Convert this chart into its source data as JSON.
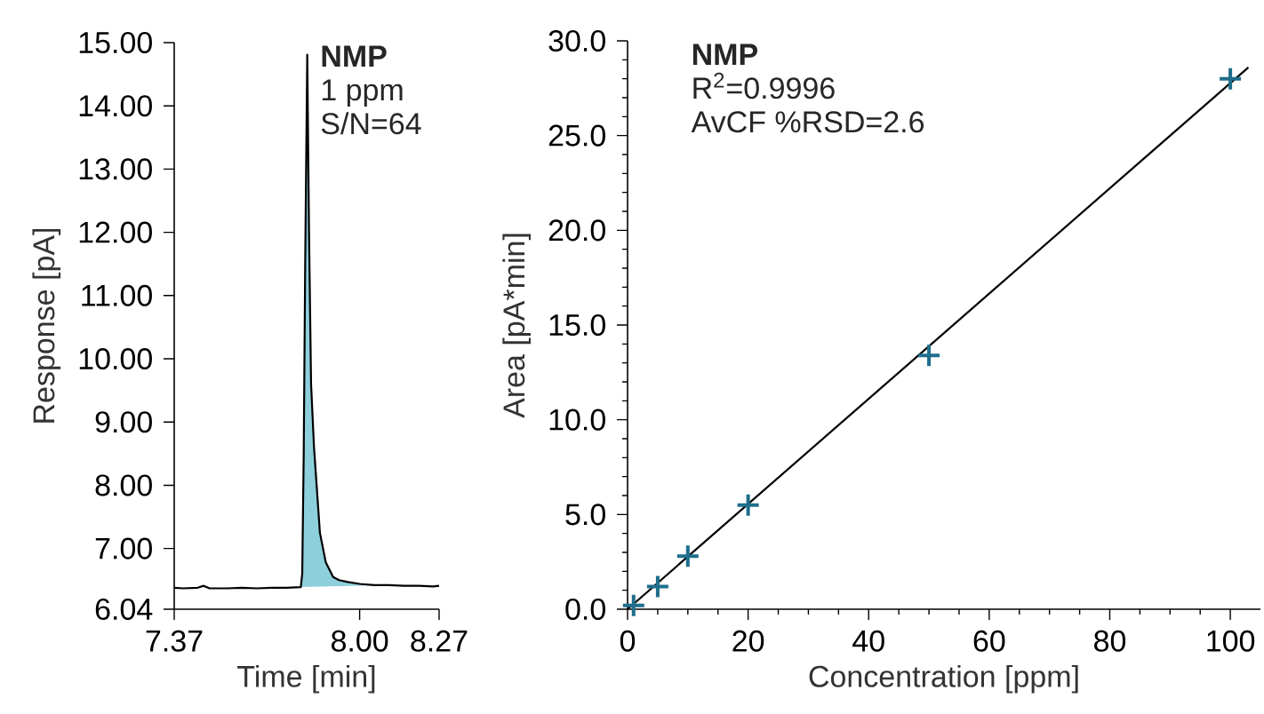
{
  "chart_data": [
    {
      "type": "line",
      "title": "NMP",
      "annotations": [
        "1 ppm",
        "S/N=64"
      ],
      "xlabel": "Time [min]",
      "ylabel": "Response [pA]",
      "xlim": [
        7.37,
        8.27
      ],
      "ylim": [
        6.04,
        15.0
      ],
      "xticks": [
        7.37,
        {
          "value": 8.0,
          "label": "8.00"
        },
        8.27
      ],
      "yticks": [
        6.04,
        {
          "value": 7,
          "label": "7.00"
        },
        {
          "value": 8,
          "label": "8.00"
        },
        {
          "value": 9,
          "label": "9.00"
        },
        {
          "value": 10,
          "label": "10.00"
        },
        {
          "value": 11,
          "label": "11.00"
        },
        {
          "value": 12,
          "label": "12.00"
        },
        {
          "value": 13,
          "label": "13.00"
        },
        {
          "value": 14,
          "label": "14.00"
        },
        {
          "value": 15,
          "label": "15.00"
        }
      ],
      "series": [
        {
          "type": "area",
          "color": "#8ecfdc",
          "x": [
            7.8,
            7.805,
            7.81,
            7.815,
            7.822,
            7.828,
            7.835,
            7.845,
            7.865,
            7.885,
            7.91,
            7.93,
            7.96,
            8.0,
            8.05,
            8.08
          ],
          "values": [
            6.39,
            6.6,
            8.5,
            11.5,
            14.81,
            12.0,
            9.6,
            8.6,
            7.25,
            6.78,
            6.55,
            6.5,
            6.47,
            6.44,
            6.42,
            6.42
          ]
        },
        {
          "color": "#000000",
          "x": [
            7.37,
            7.4,
            7.45,
            7.47,
            7.49,
            7.55,
            7.6,
            7.65,
            7.7,
            7.75,
            7.8,
            7.805,
            7.81,
            7.815,
            7.822,
            7.828,
            7.835,
            7.845,
            7.865,
            7.885,
            7.91,
            7.93,
            7.96,
            8.0,
            8.05,
            8.1,
            8.15,
            8.2,
            8.25,
            8.27
          ],
          "values": [
            6.38,
            6.37,
            6.38,
            6.41,
            6.37,
            6.37,
            6.38,
            6.37,
            6.38,
            6.38,
            6.39,
            6.6,
            8.5,
            11.5,
            14.81,
            12.0,
            9.6,
            8.6,
            7.25,
            6.78,
            6.55,
            6.5,
            6.47,
            6.44,
            6.42,
            6.42,
            6.41,
            6.41,
            6.4,
            6.41
          ]
        }
      ]
    },
    {
      "type": "scatter",
      "title": "NMP",
      "annotations": [
        "R$^{2}$=0.9996",
        "AvCF %RSD=2.6"
      ],
      "xlabel": "Concentration [ppm]",
      "ylabel": "Area [pA*min]",
      "xlim": [
        0,
        105
      ],
      "ylim": [
        0,
        30
      ],
      "xticks": [
        0,
        20,
        40,
        60,
        80,
        100
      ],
      "yticks": [
        {
          "value": 0,
          "label": "0.0"
        },
        {
          "value": 5,
          "label": "5.0"
        },
        {
          "value": 10,
          "label": "10.0"
        },
        {
          "value": 15,
          "label": "15.0"
        },
        {
          "value": 20,
          "label": "20.0"
        },
        {
          "value": 25,
          "label": "25.0"
        },
        {
          "value": 30,
          "label": "30.0"
        }
      ],
      "series": [
        {
          "type": "line",
          "color": "#000000",
          "x": [
            0,
            103
          ],
          "values": [
            0,
            28.6
          ]
        },
        {
          "color": "#1f6e8c",
          "marker": "cross",
          "x": [
            1,
            5,
            10,
            20,
            50,
            100
          ],
          "values": [
            0.2,
            1.2,
            2.8,
            5.5,
            13.4,
            28.0
          ]
        }
      ]
    }
  ]
}
